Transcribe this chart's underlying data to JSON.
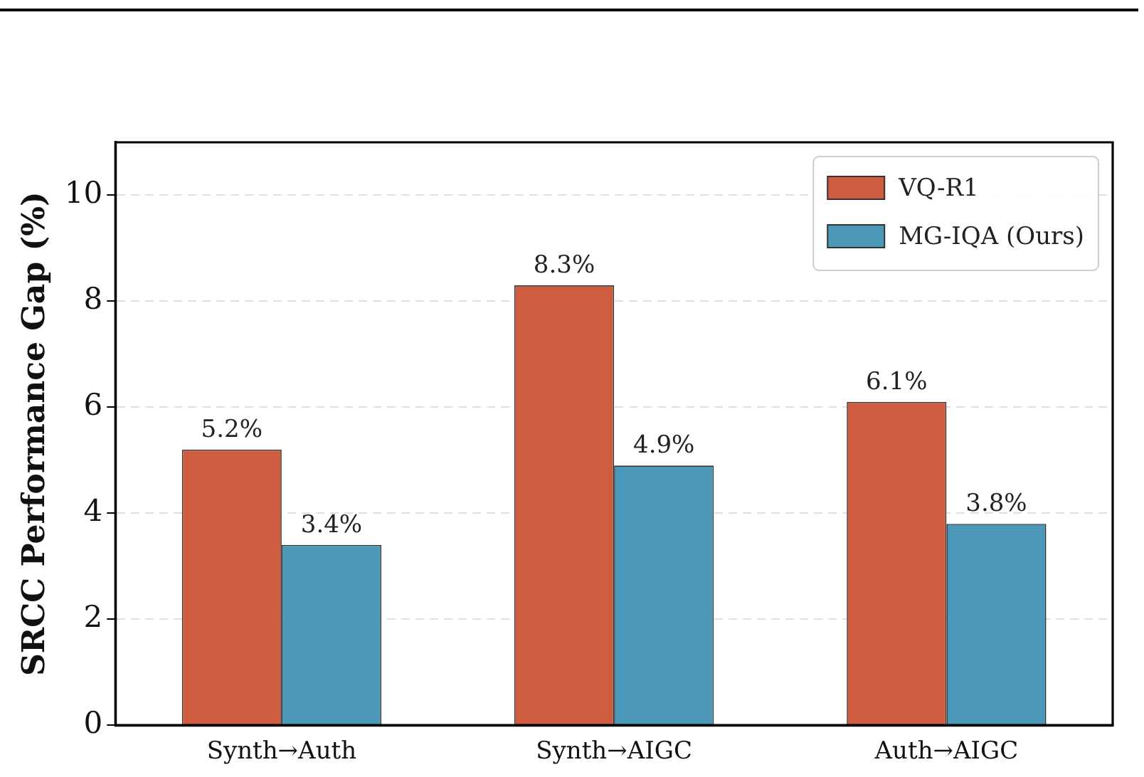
{
  "chart_data": {
    "type": "bar",
    "ylabel": "SRCC Performance Gap (%)",
    "categories": [
      "Synth→Auth",
      "Synth→AIGC",
      "Auth→AIGC"
    ],
    "series": [
      {
        "name": "VQ-R1",
        "color": "#cd5c40",
        "values": [
          5.2,
          8.3,
          6.1
        ],
        "value_labels": [
          "5.2%",
          "8.3%",
          "6.1%"
        ]
      },
      {
        "name": "MG-IQA (Ours)",
        "color": "#4b98b8",
        "values": [
          3.4,
          4.9,
          3.8
        ],
        "value_labels": [
          "3.4%",
          "4.9%",
          "3.8%"
        ]
      }
    ],
    "ylim": [
      0,
      11
    ],
    "yticks": [
      0,
      2,
      4,
      6,
      8,
      10
    ],
    "grid": "y",
    "legend": "top right"
  }
}
